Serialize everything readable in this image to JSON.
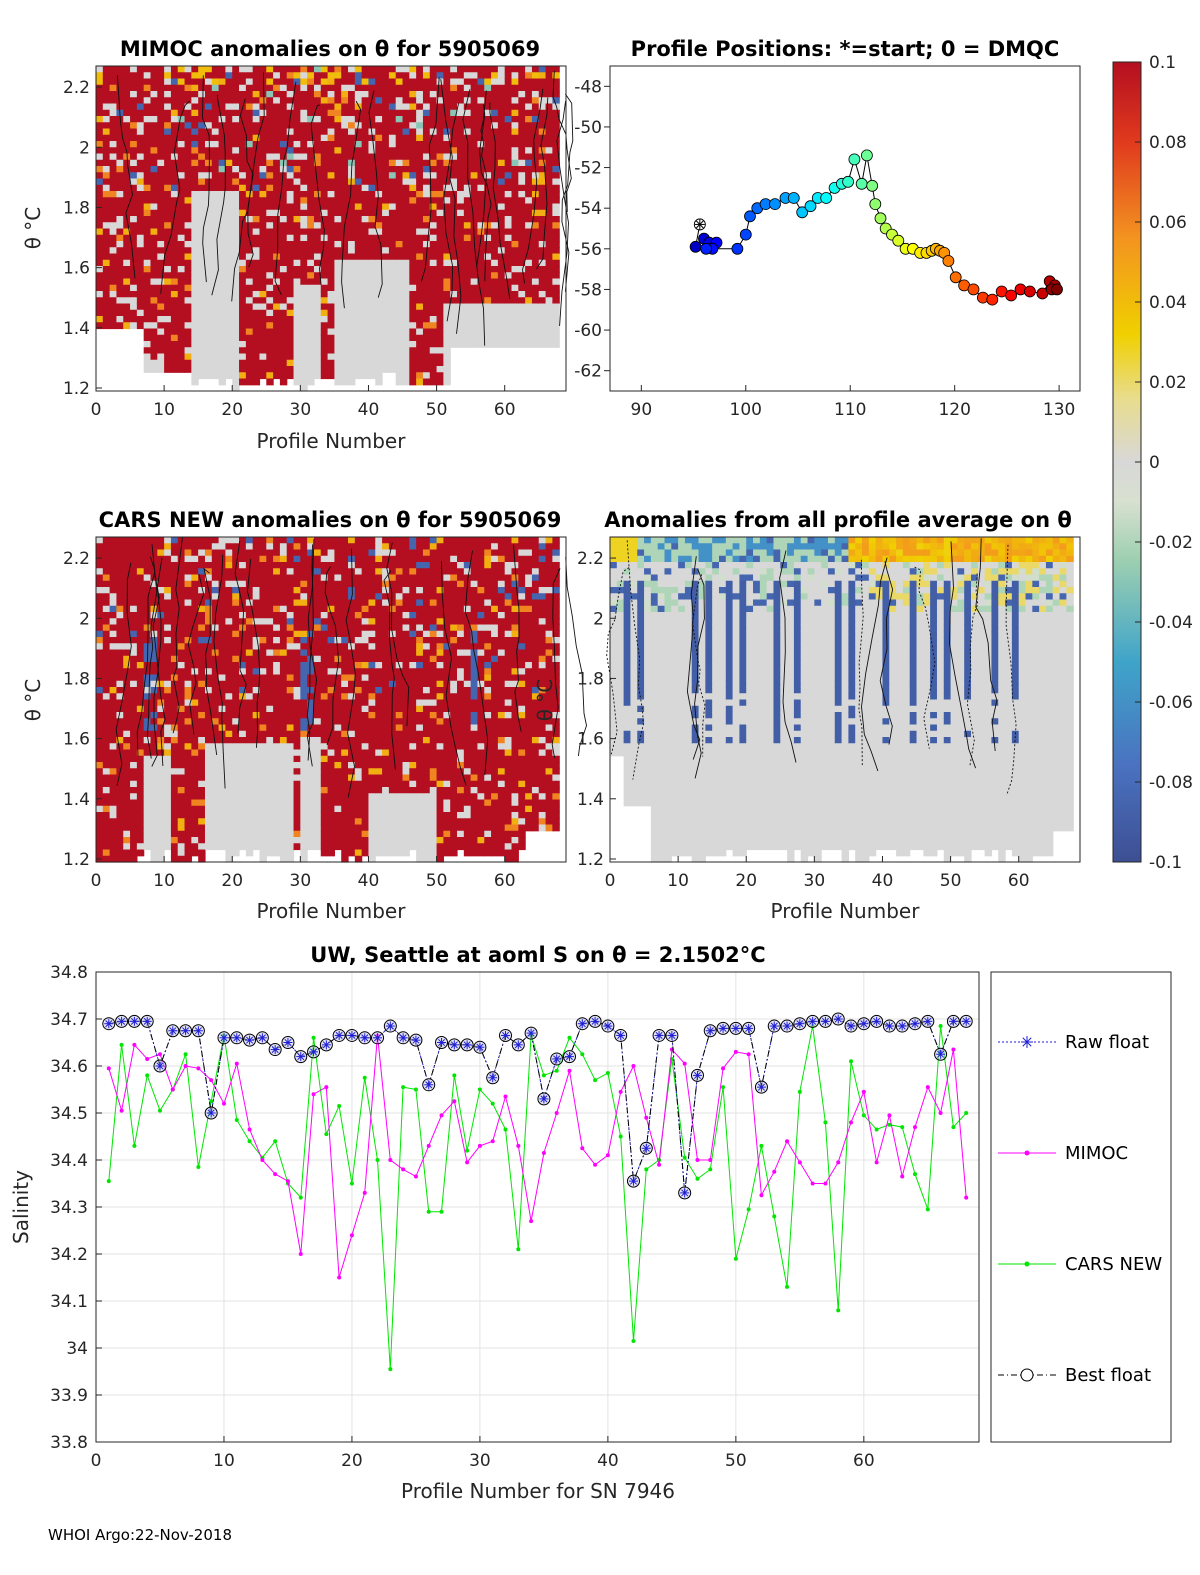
{
  "footer": "WHOI Argo:22-Nov-2018",
  "colorbar": {
    "ticks": [
      "0.1",
      "0.08",
      "0.06",
      "0.04",
      "0.02",
      "0",
      "-0.02",
      "-0.04",
      "-0.06",
      "-0.08",
      "-0.1"
    ],
    "range": [
      -0.1,
      0.1
    ]
  },
  "panels": {
    "mimoc": {
      "title": "MIMOC anomalies on θ  for 5905069",
      "xlabel": "Profile Number",
      "ylabel": "θ °C",
      "xticks": [
        "0",
        "10",
        "20",
        "30",
        "40",
        "50",
        "60"
      ],
      "yticks": [
        "2.2",
        "2",
        "1.8",
        "1.6",
        "1.4",
        "1.2"
      ]
    },
    "positions": {
      "title": "Profile Positions: *=start; 0 = DMQC",
      "xticks": [
        "90",
        "100",
        "110",
        "120",
        "130"
      ],
      "yticks": [
        "-48",
        "-50",
        "-52",
        "-54",
        "-56",
        "-58",
        "-60",
        "-62"
      ]
    },
    "cars": {
      "title": "CARS NEW anomalies on θ for 5905069",
      "xlabel": "Profile Number",
      "ylabel": "θ °C",
      "xticks": [
        "0",
        "10",
        "20",
        "30",
        "40",
        "50",
        "60"
      ],
      "yticks": [
        "2.2",
        "2",
        "1.8",
        "1.6",
        "1.4",
        "1.2"
      ]
    },
    "avg": {
      "title": "Anomalies from all profile average on θ",
      "xlabel": "Profile Number",
      "ylabel": "θ °C",
      "xticks": [
        "0",
        "10",
        "20",
        "30",
        "40",
        "50",
        "60"
      ],
      "yticks": [
        "2.2",
        "2",
        "1.8",
        "1.6",
        "1.4",
        "1.2"
      ]
    },
    "salinity": {
      "title": "UW, Seattle at aoml S on θ = 2.1502°C",
      "xlabel": "Profile Number for SN 7946",
      "ylabel": "Salinity",
      "xticks": [
        "0",
        "10",
        "20",
        "30",
        "40",
        "50",
        "60"
      ],
      "yticks": [
        "34.8",
        "34.7",
        "34.6",
        "34.5",
        "34.4",
        "34.3",
        "34.2",
        "34.1",
        "34",
        "33.9",
        "33.8"
      ]
    }
  },
  "legend": {
    "raw": "Raw float",
    "mimoc": "MIMOC",
    "cars": "CARS NEW",
    "best": "Best float"
  },
  "colors": {
    "raw": "#1f1fd6",
    "mimoc": "#ff00ff",
    "cars": "#00e600",
    "best": "#000000",
    "anomaly_high": "#b40f20",
    "anomaly_zero": "#d8d8d8"
  },
  "chart_data": [
    {
      "type": "heatmap",
      "title": "MIMOC anomalies on θ  for 5905069",
      "xlabel": "Profile Number",
      "ylabel": "θ °C",
      "xlim": [
        0,
        69
      ],
      "ylim": [
        1.19,
        2.27
      ],
      "color_range": [
        -0.1,
        0.1
      ],
      "dominant_value": 0.1,
      "near_zero_regions_profiles": [
        [
          15,
          21
        ],
        [
          36,
          46
        ],
        [
          52,
          68
        ]
      ]
    },
    {
      "type": "scatter",
      "title": "Profile Positions: *=start; 0 = DMQC",
      "xlim": [
        87,
        132
      ],
      "ylim": [
        -63,
        -47
      ],
      "start": [
        95.6,
        -54.8
      ],
      "lon": [
        95.6,
        95.2,
        96.0,
        96.5,
        97.2,
        96.8,
        96.2,
        99.2,
        100.0,
        100.4,
        101.1,
        101.9,
        102.8,
        103.8,
        104.6,
        105.4,
        106.2,
        106.9,
        107.7,
        108.5,
        109.2,
        109.8,
        110.4,
        111.1,
        111.6,
        112.1,
        112.4,
        112.9,
        113.4,
        114.0,
        114.6,
        115.3,
        116.0,
        116.7,
        117.3,
        117.8,
        118.2,
        118.6,
        119.0,
        119.4,
        120.1,
        120.9,
        121.8,
        122.7,
        123.6,
        124.5,
        125.4,
        126.3,
        127.2,
        128.4,
        129.1,
        129.6,
        129.3,
        129.8
      ],
      "lat": [
        -54.8,
        -55.9,
        -55.5,
        -55.7,
        -55.7,
        -56.0,
        -56.0,
        -56.0,
        -55.3,
        -54.4,
        -54.0,
        -53.8,
        -53.8,
        -53.5,
        -53.5,
        -54.2,
        -53.9,
        -53.5,
        -53.5,
        -53.0,
        -52.8,
        -52.7,
        -51.6,
        -52.8,
        -51.4,
        -52.9,
        -53.8,
        -54.5,
        -55.0,
        -55.3,
        -55.6,
        -56.0,
        -56.0,
        -56.2,
        -56.2,
        -56.1,
        -56.0,
        -56.1,
        -56.2,
        -56.6,
        -57.4,
        -57.8,
        -58.0,
        -58.4,
        -58.5,
        -58.1,
        -58.3,
        -58.0,
        -58.1,
        -58.2,
        -57.6,
        -57.8,
        -58.0,
        -58.0
      ]
    },
    {
      "type": "heatmap",
      "title": "CARS NEW anomalies on θ for 5905069",
      "xlabel": "Profile Number",
      "ylabel": "θ °C",
      "xlim": [
        0,
        69
      ],
      "ylim": [
        1.19,
        2.27
      ],
      "color_range": [
        -0.1,
        0.1
      ],
      "dominant_value": 0.1,
      "near_zero_regions_profiles": [
        [
          8,
          11
        ],
        [
          17,
          29
        ],
        [
          41,
          50
        ]
      ]
    },
    {
      "type": "heatmap",
      "title": "Anomalies from all profile average on θ",
      "xlabel": "Profile Number",
      "ylabel": "θ °C",
      "xlim": [
        0,
        69
      ],
      "ylim": [
        1.19,
        2.27
      ],
      "color_range": [
        -0.1,
        0.1
      ],
      "dominant_value": 0.0,
      "warm_top_region_profiles": [
        [
          36,
          68
        ]
      ],
      "cold_columns_profiles": [
        3,
        5,
        13,
        15,
        18,
        20,
        25,
        28,
        34,
        36,
        41,
        45,
        48,
        50,
        53,
        57,
        60
      ]
    },
    {
      "type": "line",
      "title": "UW, Seattle at aoml S on θ = 2.1502°C",
      "xlabel": "Profile Number for SN 7946",
      "ylabel": "Salinity",
      "xlim": [
        0,
        69
      ],
      "ylim": [
        33.8,
        34.8
      ],
      "x": [
        1,
        2,
        3,
        4,
        5,
        6,
        7,
        8,
        9,
        10,
        11,
        12,
        13,
        14,
        15,
        16,
        17,
        18,
        19,
        20,
        21,
        22,
        23,
        24,
        25,
        26,
        27,
        28,
        29,
        30,
        31,
        32,
        33,
        34,
        35,
        36,
        37,
        38,
        39,
        40,
        41,
        42,
        43,
        44,
        45,
        46,
        47,
        48,
        49,
        50,
        51,
        52,
        53,
        54,
        55,
        56,
        57,
        58,
        59,
        60,
        61,
        62,
        63,
        64,
        65,
        66,
        67,
        68
      ],
      "series": [
        {
          "name": "Raw float",
          "values": [
            34.69,
            34.695,
            34.695,
            34.695,
            34.6,
            34.675,
            34.675,
            34.675,
            34.5,
            34.66,
            34.66,
            34.655,
            34.66,
            34.635,
            34.65,
            34.62,
            34.63,
            34.645,
            34.665,
            34.665,
            34.66,
            34.66,
            34.685,
            34.66,
            34.655,
            34.56,
            34.65,
            34.645,
            34.645,
            34.64,
            34.575,
            34.665,
            34.645,
            34.67,
            34.53,
            34.615,
            34.62,
            34.69,
            34.695,
            34.685,
            34.665,
            34.355,
            34.425,
            34.665,
            34.665,
            34.33,
            34.58,
            34.675,
            34.68,
            34.68,
            34.68,
            34.555,
            34.685,
            34.685,
            34.69,
            34.695,
            34.695,
            34.7,
            34.685,
            34.69,
            34.695,
            34.685,
            34.685,
            34.69,
            34.695,
            34.625,
            34.695,
            34.695
          ]
        },
        {
          "name": "MIMOC",
          "values": [
            34.595,
            34.505,
            34.645,
            34.615,
            34.625,
            34.55,
            34.6,
            34.595,
            34.57,
            34.52,
            34.605,
            34.465,
            34.4,
            34.37,
            34.355,
            34.2,
            34.54,
            34.555,
            34.15,
            34.24,
            34.33,
            34.665,
            34.4,
            34.38,
            34.365,
            34.43,
            34.495,
            34.525,
            34.395,
            34.43,
            34.44,
            34.535,
            34.43,
            34.27,
            34.415,
            34.5,
            34.59,
            34.425,
            34.39,
            34.41,
            34.545,
            34.6,
            34.49,
            34.39,
            34.635,
            34.605,
            34.4,
            34.4,
            34.595,
            34.63,
            34.625,
            34.325,
            34.375,
            34.44,
            34.395,
            34.35,
            34.35,
            34.395,
            34.48,
            34.545,
            34.395,
            34.495,
            34.365,
            34.47,
            34.555,
            34.5,
            34.635,
            34.32
          ]
        },
        {
          "name": "CARS NEW",
          "values": [
            34.355,
            34.645,
            34.43,
            34.58,
            34.505,
            34.55,
            34.625,
            34.385,
            34.525,
            34.665,
            34.485,
            34.44,
            34.405,
            34.44,
            34.35,
            34.32,
            34.66,
            34.455,
            34.515,
            34.35,
            34.575,
            34.4,
            33.955,
            34.555,
            34.55,
            34.29,
            34.29,
            34.58,
            34.42,
            34.55,
            34.52,
            34.465,
            34.21,
            34.665,
            34.58,
            34.59,
            34.66,
            34.625,
            34.57,
            34.585,
            34.45,
            34.015,
            34.38,
            34.4,
            34.615,
            34.405,
            34.36,
            34.38,
            34.555,
            34.19,
            34.295,
            34.43,
            34.28,
            34.13,
            34.545,
            34.685,
            34.48,
            34.08,
            34.61,
            34.495,
            34.465,
            34.475,
            34.47,
            34.37,
            34.295,
            34.685,
            34.47,
            34.5
          ]
        },
        {
          "name": "Best float",
          "values": [
            34.69,
            34.695,
            34.695,
            34.695,
            34.6,
            34.675,
            34.675,
            34.675,
            34.5,
            34.66,
            34.66,
            34.655,
            34.66,
            34.635,
            34.65,
            34.62,
            34.63,
            34.645,
            34.665,
            34.665,
            34.66,
            34.66,
            34.685,
            34.66,
            34.655,
            34.56,
            34.65,
            34.645,
            34.645,
            34.64,
            34.575,
            34.665,
            34.645,
            34.67,
            34.53,
            34.615,
            34.62,
            34.69,
            34.695,
            34.685,
            34.665,
            34.355,
            34.425,
            34.665,
            34.665,
            34.33,
            34.58,
            34.675,
            34.68,
            34.68,
            34.68,
            34.555,
            34.685,
            34.685,
            34.69,
            34.695,
            34.695,
            34.7,
            34.685,
            34.69,
            34.695,
            34.685,
            34.685,
            34.69,
            34.695,
            34.625,
            34.695,
            34.695
          ]
        }
      ]
    }
  ]
}
